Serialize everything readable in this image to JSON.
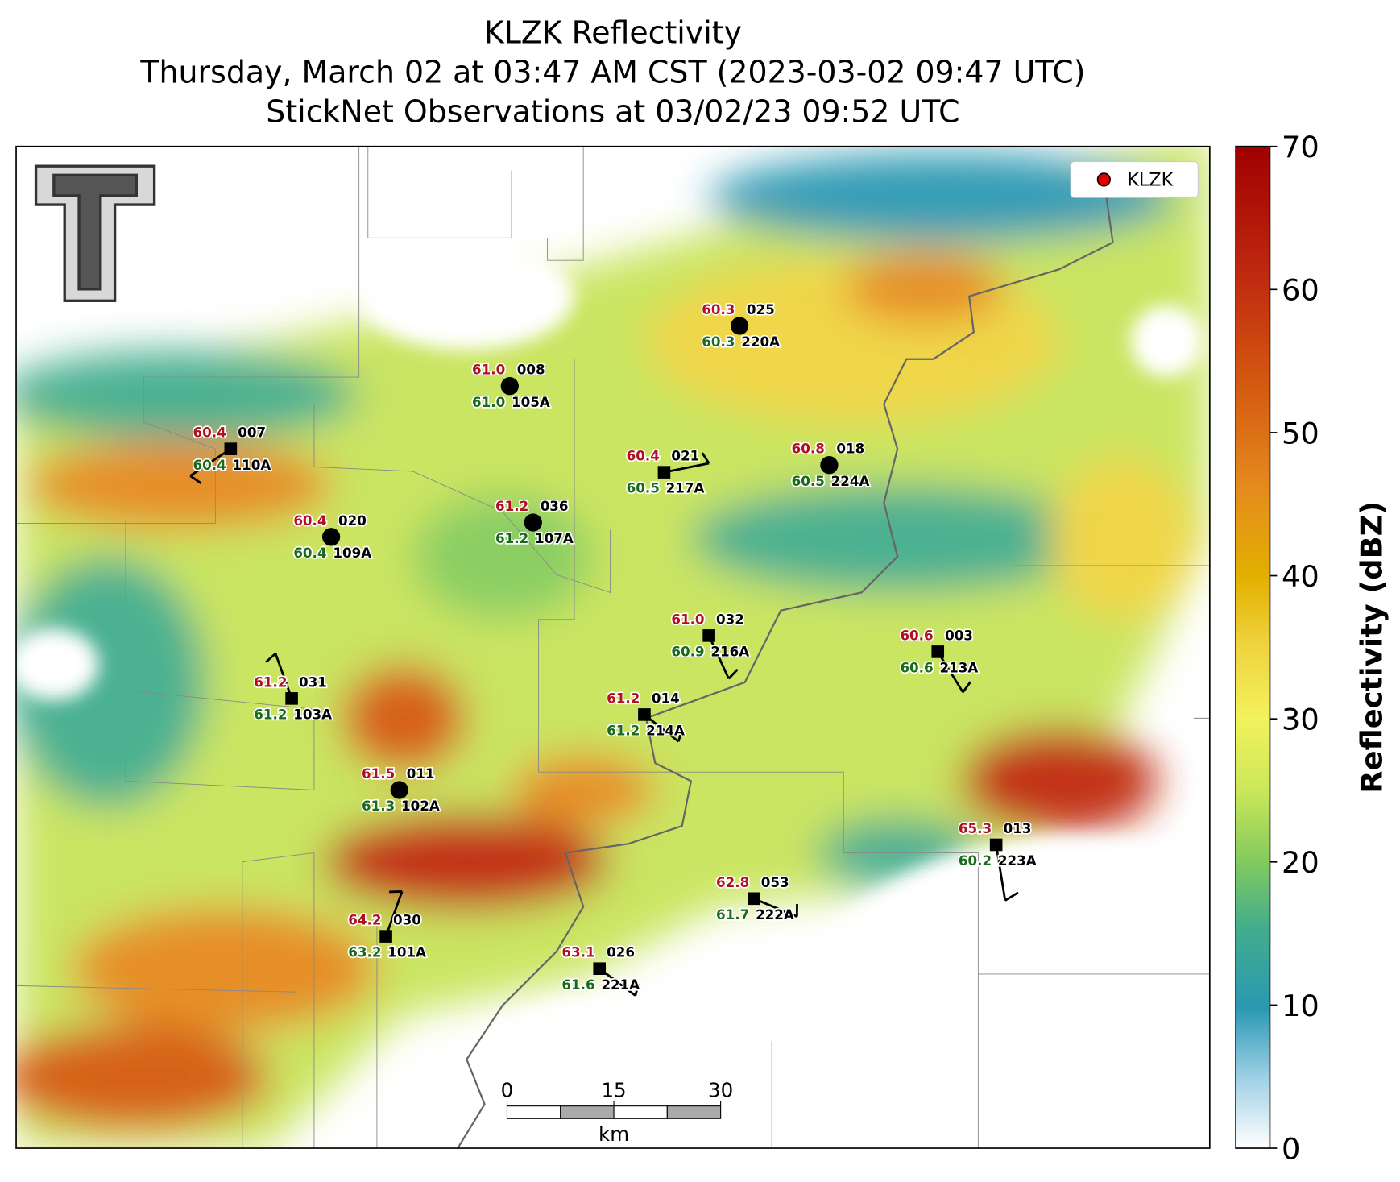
{
  "title": [
    "KLZK Reflectivity",
    "Thursday, March 02 at 03:47 AM CST (2023-03-02 09:47 UTC)",
    "StickNet Observations at 03/02/23 09:52 UTC"
  ],
  "legend": {
    "label": "KLZK",
    "color": "#e00000"
  },
  "colorbar": {
    "label": "Reflectivity (dBZ)",
    "lim": [
      0,
      70
    ],
    "ticks": [
      0,
      10,
      20,
      30,
      40,
      50,
      60,
      70
    ]
  },
  "scale_bar": {
    "ticks": [
      0,
      15,
      30
    ],
    "unit": "km"
  },
  "stations": [
    {
      "temp": "60.4",
      "id": "007",
      "temp2": "60.4",
      "probe": "110A"
    },
    {
      "temp": "61.0",
      "id": "008",
      "temp2": "61.0",
      "probe": "105A"
    },
    {
      "temp": "60.3",
      "id": "025",
      "temp2": "60.3",
      "probe": "220A"
    },
    {
      "temp": "60.4",
      "id": "021",
      "temp2": "60.5",
      "probe": "217A"
    },
    {
      "temp": "60.8",
      "id": "018",
      "temp2": "60.5",
      "probe": "224A"
    },
    {
      "temp": "60.4",
      "id": "020",
      "temp2": "60.4",
      "probe": "109A"
    },
    {
      "temp": "61.2",
      "id": "036",
      "temp2": "61.2",
      "probe": "107A"
    },
    {
      "temp": "61.0",
      "id": "032",
      "temp2": "60.9",
      "probe": "216A"
    },
    {
      "temp": "60.6",
      "id": "003",
      "temp2": "60.6",
      "probe": "213A"
    },
    {
      "temp": "61.2",
      "id": "031",
      "temp2": "61.2",
      "probe": "103A"
    },
    {
      "temp": "61.2",
      "id": "014",
      "temp2": "61.2",
      "probe": "214A"
    },
    {
      "temp": "61.5",
      "id": "011",
      "temp2": "61.3",
      "probe": "102A"
    },
    {
      "temp": "65.3",
      "id": "013",
      "temp2": "60.2",
      "probe": "223A"
    },
    {
      "temp": "62.8",
      "id": "053",
      "temp2": "61.7",
      "probe": "222A"
    },
    {
      "temp": "64.2",
      "id": "030",
      "temp2": "63.2",
      "probe": "101A"
    },
    {
      "temp": "63.1",
      "id": "026",
      "temp2": "61.6",
      "probe": "221A"
    }
  ]
}
